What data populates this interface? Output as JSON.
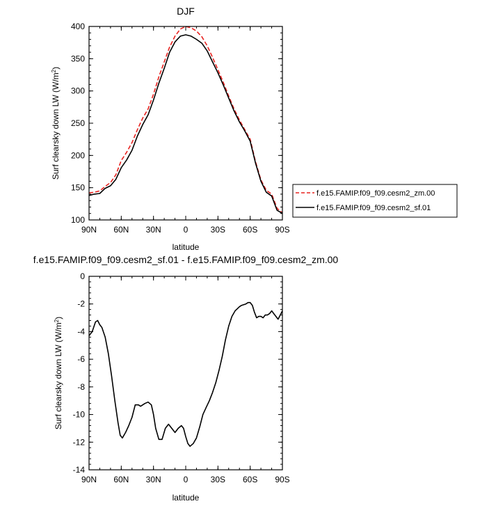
{
  "chart_data": [
    {
      "type": "line",
      "title": "DJF",
      "xlabel": "latitude",
      "ylabel_main": "Surf clearsky down LW (W/m",
      "ylabel_sup": "2",
      "ylabel_tail": ")",
      "xlim": [
        90,
        -90
      ],
      "ylim": [
        100,
        400
      ],
      "x_ticks": [
        90,
        60,
        30,
        0,
        -30,
        -60,
        -90
      ],
      "x_tick_labels": [
        "90N",
        "60N",
        "30N",
        "0",
        "30S",
        "60S",
        "90S"
      ],
      "y_ticks": [
        100,
        150,
        200,
        250,
        300,
        350,
        400
      ],
      "y_tick_labels": [
        "100",
        "150",
        "200",
        "250",
        "300",
        "350",
        "400"
      ],
      "grid": false,
      "legend_position": "right",
      "series": [
        {
          "name": "f.e15.FAMIP.f09_f09.cesm2_zm.00",
          "color": "#e8221f",
          "dash": "dashed",
          "x": [
            90,
            85,
            80,
            75,
            70,
            65,
            60,
            55,
            50,
            45,
            40,
            35,
            30,
            25,
            20,
            15,
            10,
            5,
            0,
            -5,
            -10,
            -15,
            -20,
            -25,
            -30,
            -35,
            -40,
            -45,
            -50,
            -55,
            -60,
            -65,
            -70,
            -75,
            -80,
            -85,
            -90
          ],
          "y": [
            142,
            143,
            145,
            152,
            158,
            170,
            192,
            205,
            220,
            240,
            258,
            272,
            295,
            322,
            345,
            368,
            385,
            396,
            400,
            398,
            393,
            384,
            370,
            352,
            333,
            313,
            292,
            272,
            255,
            240,
            225,
            190,
            162,
            146,
            140,
            118,
            111
          ]
        },
        {
          "name": "f.e15.FAMIP.f09_f09.cesm2_sf.01",
          "color": "#000000",
          "dash": "solid",
          "x": [
            90,
            85,
            80,
            75,
            70,
            65,
            60,
            55,
            50,
            45,
            40,
            35,
            30,
            25,
            20,
            15,
            10,
            5,
            0,
            -5,
            -10,
            -15,
            -20,
            -25,
            -30,
            -35,
            -40,
            -45,
            -50,
            -55,
            -60,
            -65,
            -70,
            -75,
            -80,
            -85,
            -90
          ],
          "y": [
            138,
            140,
            141,
            149,
            153,
            163,
            181,
            193,
            208,
            230,
            248,
            263,
            286,
            312,
            335,
            360,
            376,
            385,
            387,
            385,
            380,
            374,
            362,
            345,
            328,
            309,
            289,
            269,
            252,
            238,
            222,
            188,
            160,
            143,
            137,
            115,
            110
          ]
        }
      ]
    },
    {
      "type": "line",
      "title": "f.e15.FAMIP.f09_f09.cesm2_sf.01 - f.e15.FAMIP.f09_f09.cesm2_zm.00",
      "xlabel": "latitude",
      "ylabel_main": "Surf clearsky down LW (W/m",
      "ylabel_sup": "2",
      "ylabel_tail": ")",
      "xlim": [
        90,
        -90
      ],
      "ylim": [
        -14,
        0
      ],
      "x_ticks": [
        90,
        60,
        30,
        0,
        -30,
        -60,
        -90
      ],
      "x_tick_labels": [
        "90N",
        "60N",
        "30N",
        "0",
        "30S",
        "60S",
        "90S"
      ],
      "y_ticks": [
        -14,
        -12,
        -10,
        -8,
        -6,
        -4,
        -2,
        0
      ],
      "y_tick_labels": [
        "-14",
        "-12",
        "-10",
        "-8",
        "-6",
        "-4",
        "-2",
        "0"
      ],
      "grid": false,
      "series": [
        {
          "color": "#000000",
          "dash": "solid",
          "x": [
            90,
            87,
            84,
            82,
            80,
            78,
            75,
            72,
            69,
            66,
            63,
            61,
            59,
            56,
            53,
            50,
            47,
            44,
            42,
            40,
            38,
            35,
            32,
            30,
            28,
            25,
            22,
            19,
            16,
            13,
            10,
            7,
            4,
            2,
            0,
            -2,
            -4,
            -7,
            -10,
            -13,
            -16,
            -19,
            -22,
            -25,
            -28,
            -31,
            -34,
            -37,
            -40,
            -43,
            -46,
            -48,
            -50,
            -52,
            -54,
            -56,
            -58,
            -60,
            -62,
            -64,
            -66,
            -68,
            -70,
            -72,
            -74,
            -76,
            -78,
            -80,
            -82,
            -84,
            -86,
            -88,
            -90
          ],
          "y": [
            -4.3,
            -4.0,
            -3.3,
            -3.2,
            -3.5,
            -3.7,
            -4.4,
            -5.6,
            -7.2,
            -9.0,
            -10.6,
            -11.5,
            -11.7,
            -11.3,
            -10.8,
            -10.2,
            -9.3,
            -9.3,
            -9.4,
            -9.3,
            -9.2,
            -9.1,
            -9.3,
            -10.0,
            -11.0,
            -11.8,
            -11.8,
            -11.0,
            -10.7,
            -11.0,
            -11.3,
            -11.0,
            -10.8,
            -11.0,
            -11.6,
            -12.1,
            -12.3,
            -12.1,
            -11.7,
            -10.9,
            -10.0,
            -9.5,
            -9.0,
            -8.4,
            -7.7,
            -6.8,
            -5.8,
            -4.6,
            -3.6,
            -2.9,
            -2.5,
            -2.35,
            -2.2,
            -2.1,
            -2.05,
            -2.0,
            -1.9,
            -1.9,
            -2.1,
            -2.6,
            -3.0,
            -2.9,
            -2.9,
            -3.0,
            -2.8,
            -2.8,
            -2.7,
            -2.5,
            -2.7,
            -2.9,
            -3.1,
            -2.8,
            -2.5
          ]
        }
      ]
    }
  ]
}
